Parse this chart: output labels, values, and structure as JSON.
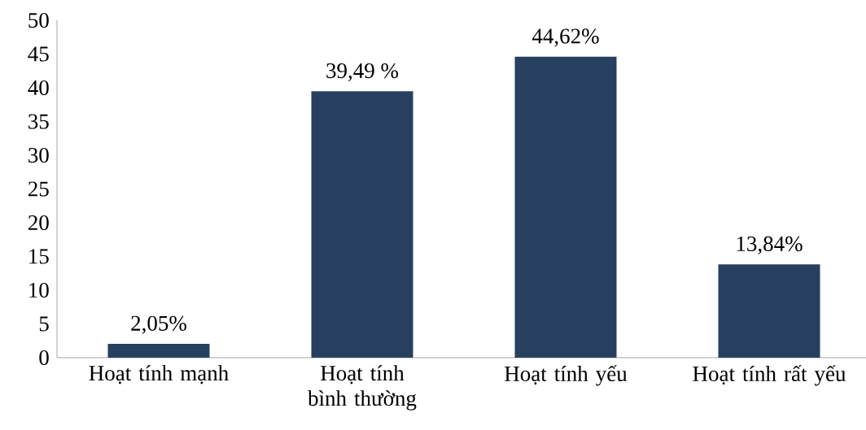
{
  "chart_data": {
    "type": "bar",
    "categories": [
      "Hoạt tính mạnh",
      "Hoạt tính bình thường",
      "Hoạt tính yếu",
      "Hoạt tính rất yếu"
    ],
    "values": [
      2.05,
      39.49,
      44.62,
      13.84
    ],
    "value_labels": [
      "2,05%",
      "39,49 %",
      "44,62%",
      "13,84%"
    ],
    "color": "#27405f",
    "ylim": [
      0,
      50
    ],
    "yticks": [
      0,
      5,
      10,
      15,
      20,
      25,
      30,
      35,
      40,
      45,
      50
    ],
    "grid": false
  }
}
